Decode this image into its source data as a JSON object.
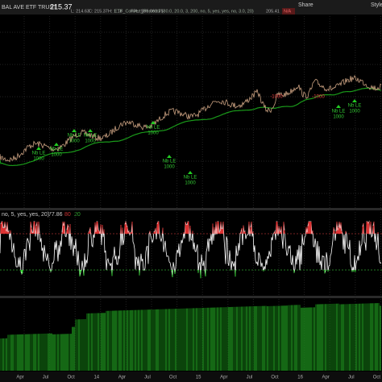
{
  "header": {
    "symbol": "BAL AVE ETF TRUST",
    "last": "215.37",
    "quote": [
      "L: 214.63",
      "C: 215.37",
      "H: 1.18",
      "FPL: $55,063.75"
    ],
    "study": "ETF_Convert_Percentil (80.0, 20.0, 3, 200, no, 5, yes, yes, no, 3.0, 20)",
    "study_value": "205.41",
    "study_status": "N/A",
    "share": "Share",
    "style": "Style"
  },
  "signals": [
    {
      "label": "Nb LE",
      "qty": "1000"
    },
    {
      "label": "Nb LE",
      "qty": "1000"
    },
    {
      "label": "Nb LE",
      "qty": "1000"
    },
    {
      "label": "Nb LE",
      "qty": "1000"
    },
    {
      "label": "Nb LE",
      "qty": "1000"
    },
    {
      "label": "Nb LE",
      "qty": "1000"
    },
    {
      "label": "Nb LE",
      "qty": "1000"
    },
    {
      "label": "Nb LE",
      "qty": "1000"
    },
    {
      "label": "Nb LE",
      "qty": "1000"
    }
  ],
  "exits": [
    "-1000",
    "-1000"
  ],
  "indicator": {
    "params": "no, 5, yes, yes, 20)",
    "value": "77.86",
    "upper": "80",
    "lower": "20"
  },
  "x_axis": [
    "Apr",
    "Jul",
    "Oct",
    "14",
    "Apr",
    "Jul",
    "Oct",
    "15",
    "Apr",
    "Jul",
    "Oct",
    "16",
    "Apr",
    "Jul",
    "Oct"
  ]
}
